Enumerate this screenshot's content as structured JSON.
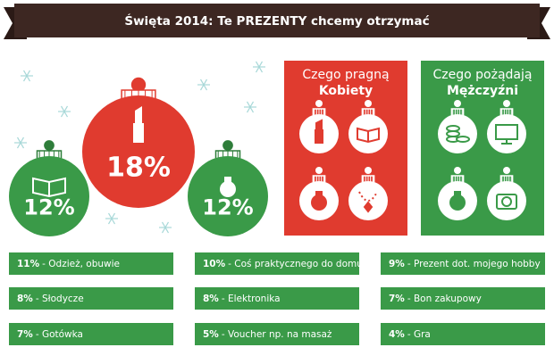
{
  "header": {
    "title": "Święta 2014: Te PREZENTY chcemy otrzymać"
  },
  "ornaments": [
    {
      "label": "12%"
    },
    {
      "label": "18%"
    },
    {
      "label": "12%"
    }
  ],
  "panels": [
    {
      "title": "Czego pragną",
      "subject": "Kobiety"
    },
    {
      "title": "Czego pożądają",
      "subject": "Mężczyźni"
    }
  ],
  "items": [
    [
      {
        "percent": "11%",
        "text": "- Odzież, obuwie"
      },
      {
        "percent": "10%",
        "text": "- Coś praktycznego do domu"
      },
      {
        "percent": "9%",
        "text": "- Prezent dot. mojego hobby"
      }
    ],
    [
      {
        "percent": "8%",
        "text": "- Słodycze"
      },
      {
        "percent": "8%",
        "text": "- Elektronika"
      },
      {
        "percent": "7%",
        "text": "- Bon zakupowy"
      }
    ],
    [
      {
        "percent": "7%",
        "text": "- Gotówka"
      },
      {
        "percent": "5%",
        "text": "- Voucher np. na masaż"
      },
      {
        "percent": "4%",
        "text": "- Gra"
      }
    ]
  ]
}
